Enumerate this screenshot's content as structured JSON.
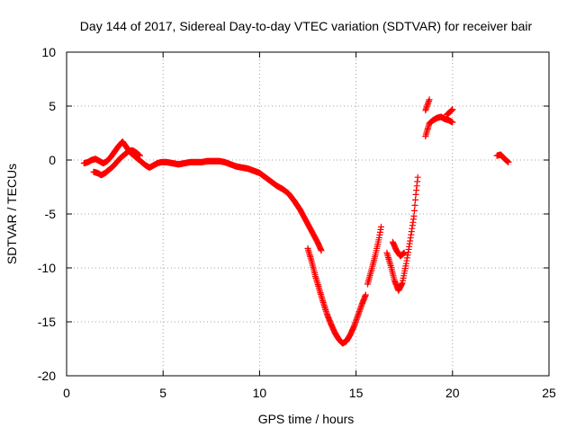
{
  "chart_data": {
    "type": "scatter",
    "title": "Day 144 of 2017, Sidereal Day-to-day VTEC variation (SDTVAR) for receiver bair",
    "xlabel": "GPS time / hours",
    "ylabel": "SDTVAR / TECUs",
    "xlim": [
      0,
      25
    ],
    "ylim": [
      -20,
      10
    ],
    "xticks": [
      0,
      5,
      10,
      15,
      20,
      25
    ],
    "yticks": [
      -20,
      -15,
      -10,
      -5,
      0,
      5,
      10
    ],
    "grid": true,
    "marker": "+",
    "series_color": "#ff0000",
    "series": [
      {
        "segments": [
          [
            [
              0.9,
              -0.3
            ],
            [
              1.1,
              -0.2
            ],
            [
              1.3,
              0.0
            ],
            [
              1.5,
              0.1
            ],
            [
              1.7,
              -0.1
            ],
            [
              1.9,
              -0.3
            ],
            [
              2.1,
              -0.1
            ],
            [
              2.3,
              0.3
            ],
            [
              2.5,
              0.8
            ],
            [
              2.7,
              1.3
            ],
            [
              2.9,
              1.7
            ],
            [
              3.1,
              1.2
            ],
            [
              3.3,
              0.7
            ],
            [
              3.5,
              0.4
            ],
            [
              3.7,
              0.1
            ],
            [
              3.9,
              -0.2
            ],
            [
              4.1,
              -0.5
            ],
            [
              4.3,
              -0.7
            ],
            [
              4.5,
              -0.5
            ],
            [
              4.7,
              -0.3
            ],
            [
              4.9,
              -0.2
            ],
            [
              5.2,
              -0.2
            ],
            [
              5.5,
              -0.3
            ],
            [
              5.8,
              -0.4
            ],
            [
              6.1,
              -0.3
            ],
            [
              6.4,
              -0.2
            ],
            [
              6.7,
              -0.2
            ],
            [
              7.0,
              -0.2
            ],
            [
              7.3,
              -0.1
            ],
            [
              7.6,
              -0.1
            ],
            [
              7.9,
              -0.1
            ],
            [
              8.2,
              -0.2
            ],
            [
              8.5,
              -0.4
            ],
            [
              8.8,
              -0.6
            ],
            [
              9.1,
              -0.7
            ],
            [
              9.4,
              -0.8
            ],
            [
              9.7,
              -1.0
            ],
            [
              10.0,
              -1.2
            ],
            [
              10.3,
              -1.6
            ],
            [
              10.6,
              -2.0
            ],
            [
              10.9,
              -2.4
            ],
            [
              11.2,
              -2.7
            ],
            [
              11.5,
              -3.1
            ],
            [
              11.8,
              -3.8
            ],
            [
              12.1,
              -4.6
            ],
            [
              12.4,
              -5.6
            ],
            [
              12.7,
              -6.6
            ],
            [
              13.0,
              -7.6
            ],
            [
              13.2,
              -8.4
            ]
          ],
          [
            [
              1.4,
              -1.1
            ],
            [
              1.6,
              -1.2
            ],
            [
              1.8,
              -1.4
            ],
            [
              2.0,
              -1.2
            ],
            [
              2.2,
              -0.9
            ],
            [
              2.4,
              -0.6
            ],
            [
              2.6,
              -0.2
            ],
            [
              2.8,
              0.2
            ],
            [
              3.0,
              0.5
            ],
            [
              3.2,
              0.8
            ],
            [
              3.4,
              0.9
            ],
            [
              3.6,
              0.7
            ],
            [
              3.8,
              0.4
            ]
          ],
          [
            [
              12.5,
              -8.2
            ],
            [
              12.7,
              -9.4
            ],
            [
              12.9,
              -10.8
            ],
            [
              13.1,
              -12.0
            ],
            [
              13.3,
              -13.2
            ],
            [
              13.5,
              -14.3
            ],
            [
              13.7,
              -15.2
            ],
            [
              13.9,
              -16.0
            ],
            [
              14.1,
              -16.6
            ],
            [
              14.3,
              -17.0
            ],
            [
              14.5,
              -16.8
            ],
            [
              14.7,
              -16.2
            ],
            [
              14.9,
              -15.4
            ],
            [
              15.1,
              -14.4
            ],
            [
              15.3,
              -13.4
            ],
            [
              15.5,
              -12.5
            ]
          ],
          [
            [
              15.6,
              -11.5
            ],
            [
              15.8,
              -10.2
            ],
            [
              16.0,
              -8.8
            ],
            [
              16.2,
              -7.2
            ],
            [
              16.3,
              -6.2
            ]
          ],
          [
            [
              16.6,
              -8.6
            ],
            [
              16.8,
              -9.8
            ],
            [
              17.0,
              -11.2
            ],
            [
              17.2,
              -12.1
            ],
            [
              17.4,
              -11.4
            ],
            [
              17.6,
              -9.6
            ],
            [
              17.8,
              -7.5
            ],
            [
              18.0,
              -5.2
            ],
            [
              18.1,
              -3.2
            ],
            [
              18.2,
              -1.6
            ]
          ],
          [
            [
              16.9,
              -7.6
            ],
            [
              17.1,
              -8.4
            ],
            [
              17.3,
              -8.9
            ],
            [
              17.5,
              -8.6
            ]
          ],
          [
            [
              18.6,
              2.2
            ],
            [
              18.8,
              3.4
            ],
            [
              19.0,
              3.7
            ],
            [
              19.2,
              3.9
            ],
            [
              19.4,
              4.0
            ],
            [
              19.6,
              3.8
            ],
            [
              19.8,
              3.7
            ],
            [
              20.0,
              3.5
            ]
          ],
          [
            [
              18.6,
              4.6
            ],
            [
              18.8,
              5.6
            ]
          ],
          [
            [
              19.7,
              4.2
            ],
            [
              19.9,
              4.5
            ],
            [
              20.0,
              4.7
            ]
          ],
          [
            [
              22.3,
              0.4
            ],
            [
              22.5,
              0.5
            ],
            [
              22.7,
              0.1
            ],
            [
              22.9,
              -0.2
            ]
          ]
        ]
      }
    ]
  }
}
